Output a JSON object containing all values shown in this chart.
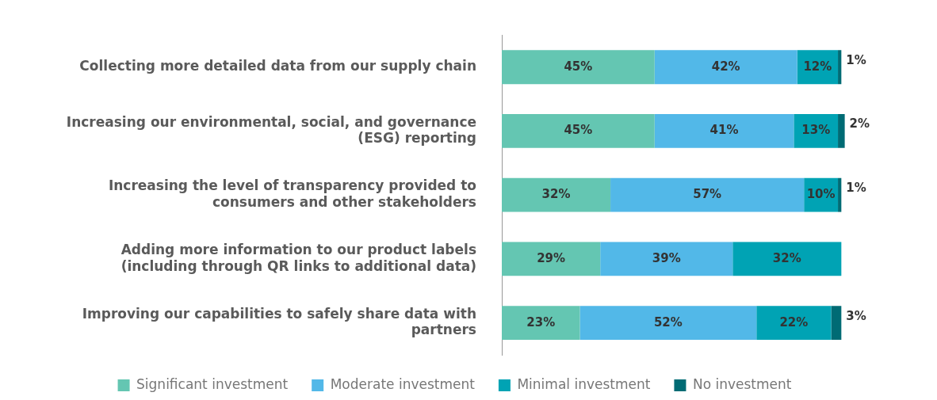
{
  "chart_data": {
    "type": "bar",
    "orientation": "horizontal",
    "stacked": true,
    "grid": false,
    "legend": "bottom",
    "tick_labels": "y",
    "categories": [
      "Collecting more detailed data from our supply chain",
      "Increasing our environmental, social, and governance (ESG) reporting",
      "Increasing the level of transparency provided to consumers and other stakeholders",
      "Adding more information to our product labels (including through QR links to additional data)",
      "Improving our capabilities to safely share data with partners"
    ],
    "series": [
      {
        "name": "Significant investment",
        "color": "#64c6b2",
        "values": [
          45,
          45,
          32,
          29,
          23
        ],
        "value_labels": [
          "45%",
          "45%",
          "32%",
          "29%",
          "23%"
        ]
      },
      {
        "name": "Moderate investment",
        "color": "#52b8e8",
        "values": [
          42,
          41,
          57,
          39,
          52
        ],
        "value_labels": [
          "42%",
          "41%",
          "57%",
          "39%",
          "52%"
        ]
      },
      {
        "name": "Minimal investment",
        "color": "#00a3b4",
        "values": [
          12,
          13,
          10,
          32,
          22
        ],
        "value_labels": [
          "12%",
          "13%",
          "10%",
          "32%",
          "22%"
        ]
      },
      {
        "name": "No investment",
        "color": "#006b74",
        "values": [
          1,
          2,
          1,
          null,
          3
        ],
        "value_labels": [
          "1%",
          "2%",
          "1%",
          null,
          "3%"
        ]
      }
    ]
  }
}
